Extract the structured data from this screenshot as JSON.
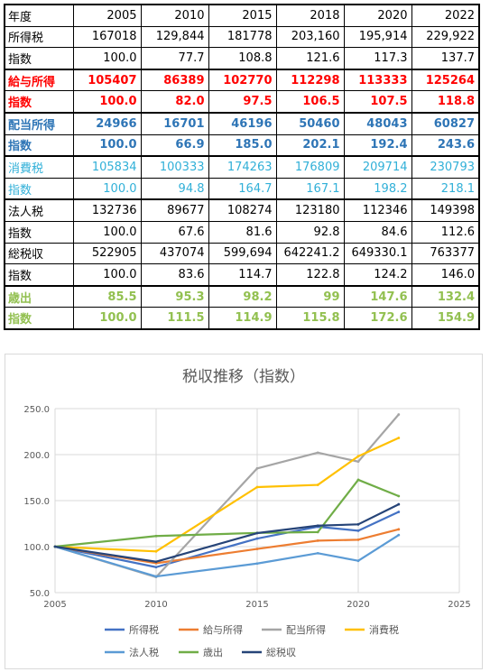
{
  "table": {
    "header": [
      "年度",
      "2005",
      "2010",
      "2015",
      "2018",
      "2020",
      "2022"
    ],
    "rows": [
      {
        "label": "所得税",
        "values": [
          "167018",
          "129,844",
          "181778",
          "203,160",
          "195,914",
          "229,922"
        ],
        "color": "#000000",
        "bold": false,
        "group_start": false
      },
      {
        "label": "指数",
        "values": [
          "100.0",
          "77.7",
          "108.8",
          "121.6",
          "117.3",
          "137.7"
        ],
        "color": "#000000",
        "bold": false,
        "group_start": false
      },
      {
        "label": "給与所得",
        "values": [
          "105407",
          "86389",
          "102770",
          "112298",
          "113333",
          "125264"
        ],
        "color": "#ff0000",
        "bold": true,
        "group_start": true
      },
      {
        "label": "指数",
        "values": [
          "100.0",
          "82.0",
          "97.5",
          "106.5",
          "107.5",
          "118.8"
        ],
        "color": "#ff0000",
        "bold": true,
        "group_start": false
      },
      {
        "label": "配当所得",
        "values": [
          "24966",
          "16701",
          "46196",
          "50460",
          "48043",
          "60827"
        ],
        "color": "#2e75b6",
        "bold": true,
        "group_start": true
      },
      {
        "label": "指数",
        "values": [
          "100.0",
          "66.9",
          "185.0",
          "202.1",
          "192.4",
          "243.6"
        ],
        "color": "#2e75b6",
        "bold": true,
        "group_start": false
      },
      {
        "label": "消費税",
        "values": [
          "105834",
          "100333",
          "174263",
          "176809",
          "209714",
          "230793"
        ],
        "color": "#31b0d8",
        "bold": false,
        "group_start": true
      },
      {
        "label": "指数",
        "values": [
          "100.0",
          "94.8",
          "164.7",
          "167.1",
          "198.2",
          "218.1"
        ],
        "color": "#31b0d8",
        "bold": false,
        "group_start": false
      },
      {
        "label": "法人税",
        "values": [
          "132736",
          "89677",
          "108274",
          "123180",
          "112346",
          "149398"
        ],
        "color": "#000000",
        "bold": false,
        "group_start": true
      },
      {
        "label": "指数",
        "values": [
          "100.0",
          "67.6",
          "81.6",
          "92.8",
          "84.6",
          "112.6"
        ],
        "color": "#000000",
        "bold": false,
        "group_start": false
      },
      {
        "label": "総税収",
        "values": [
          "522905",
          "437074",
          "599,694",
          "642241.2",
          "649330.1",
          "763377"
        ],
        "color": "#000000",
        "bold": false,
        "group_start": false
      },
      {
        "label": "指数",
        "values": [
          "100.0",
          "83.6",
          "114.7",
          "122.8",
          "124.2",
          "146.0"
        ],
        "color": "#000000",
        "bold": false,
        "group_start": false
      },
      {
        "label": "歳出",
        "values": [
          "85.5",
          "95.3",
          "98.2",
          "99",
          "147.6",
          "132.4"
        ],
        "color": "#92c050",
        "bold": true,
        "group_start": true
      },
      {
        "label": "指数",
        "values": [
          "100.0",
          "111.5",
          "114.9",
          "115.8",
          "172.6",
          "154.9"
        ],
        "color": "#92c050",
        "bold": true,
        "group_start": false
      }
    ]
  },
  "chart_data": {
    "type": "scatter",
    "title": "税収推移（指数）",
    "x": [
      2005,
      2010,
      2015,
      2018,
      2020,
      2022
    ],
    "xlim": [
      2005,
      2025
    ],
    "xticks": [
      "2005",
      "2010",
      "2015",
      "2020",
      "2025"
    ],
    "ylim": [
      50,
      250
    ],
    "yticks": [
      "50.0",
      "100.0",
      "150.0",
      "200.0",
      "250.0"
    ],
    "grid": "horizontal and vertical",
    "legend_position": "bottom",
    "series": [
      {
        "name": "所得税",
        "values": [
          100.0,
          77.7,
          108.8,
          121.6,
          117.3,
          137.7
        ],
        "color": "#4472c4"
      },
      {
        "name": "給与所得",
        "values": [
          100.0,
          82.0,
          97.5,
          106.5,
          107.5,
          118.8
        ],
        "color": "#ed7d31"
      },
      {
        "name": "配当所得",
        "values": [
          100.0,
          66.9,
          185.0,
          202.1,
          192.4,
          243.6
        ],
        "color": "#a5a5a5"
      },
      {
        "name": "消費税",
        "values": [
          100.0,
          94.8,
          164.7,
          167.1,
          198.2,
          218.1
        ],
        "color": "#ffc000"
      },
      {
        "name": "法人税",
        "values": [
          100.0,
          67.6,
          81.6,
          92.8,
          84.6,
          112.6
        ],
        "color": "#5b9bd5"
      },
      {
        "name": "歳出",
        "values": [
          100.0,
          111.5,
          114.9,
          115.8,
          172.6,
          154.9
        ],
        "color": "#70ad47"
      },
      {
        "name": "総税収",
        "values": [
          100.0,
          83.6,
          114.7,
          122.8,
          124.2,
          146.0
        ],
        "color": "#264478"
      }
    ]
  }
}
